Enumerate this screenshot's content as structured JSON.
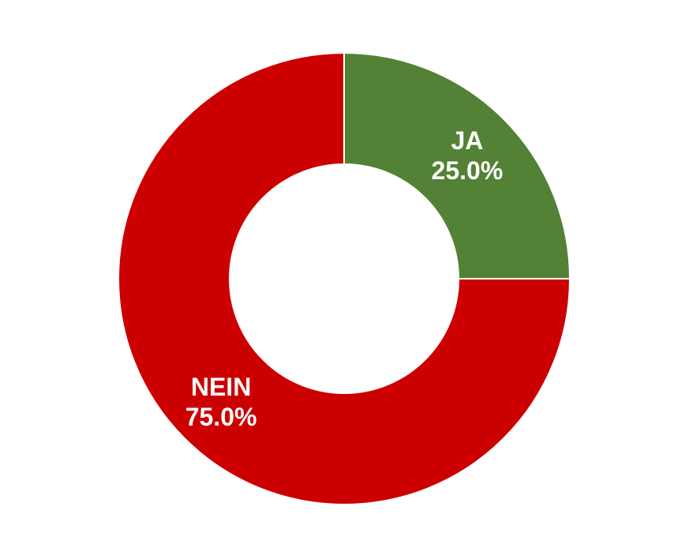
{
  "chart_data": {
    "type": "pie",
    "variant": "donut",
    "title": "",
    "legend": "none",
    "slices": [
      {
        "label": "JA",
        "value": 25.0,
        "display": "25.0%",
        "color": "#538135"
      },
      {
        "label": "NEIN",
        "value": 75.0,
        "display": "75.0%",
        "color": "#cc0000"
      }
    ]
  }
}
